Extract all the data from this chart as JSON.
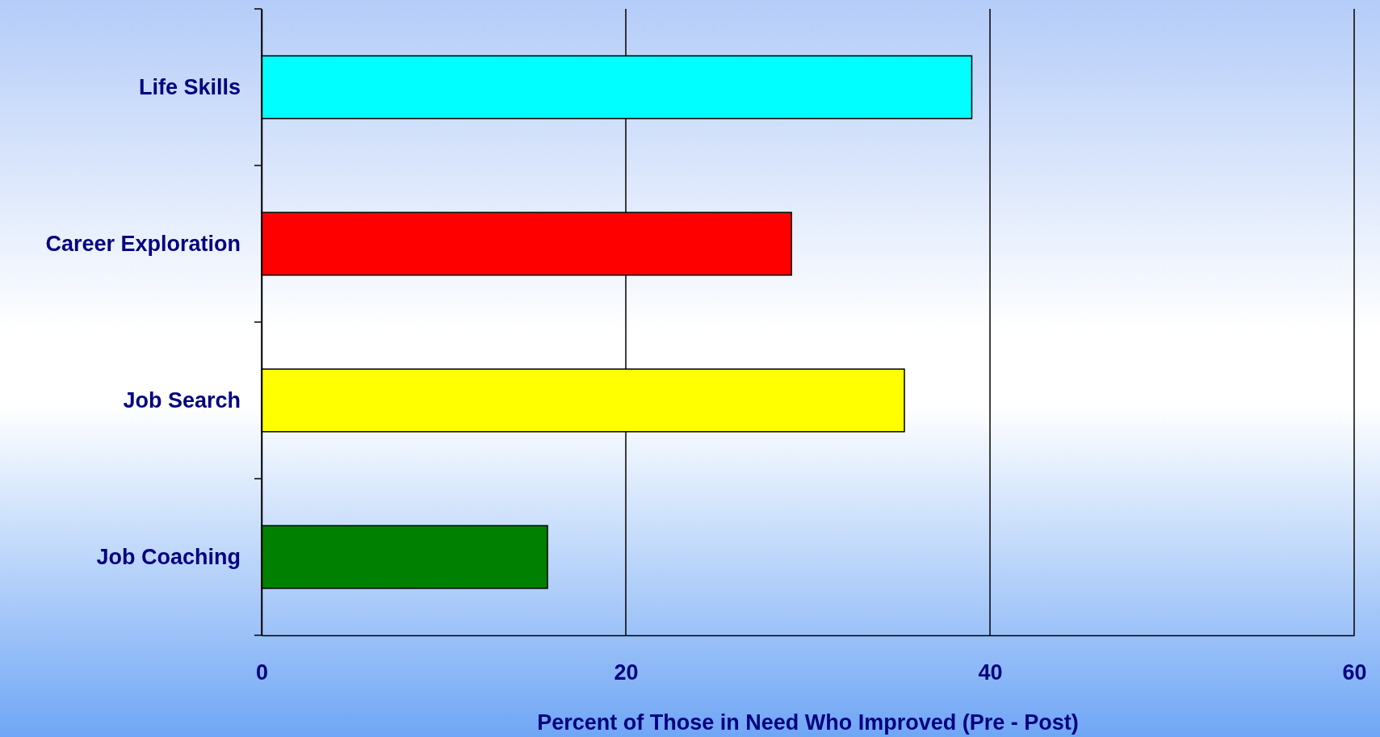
{
  "chart_data": {
    "type": "bar",
    "orientation": "horizontal",
    "xlabel": "Percent of Those in Need Who Improved (Pre - Post)",
    "categories": [
      "Life Skills",
      "Career Exploration",
      "Job Search",
      "Job Coaching"
    ],
    "values": [
      39.0,
      29.1,
      35.3,
      15.7
    ],
    "colors": [
      "#00ffff",
      "#ff0000",
      "#ffff00",
      "#008000"
    ],
    "xlim": [
      0,
      60
    ],
    "xticks": [
      0,
      20,
      40,
      60
    ],
    "grid": "x"
  }
}
